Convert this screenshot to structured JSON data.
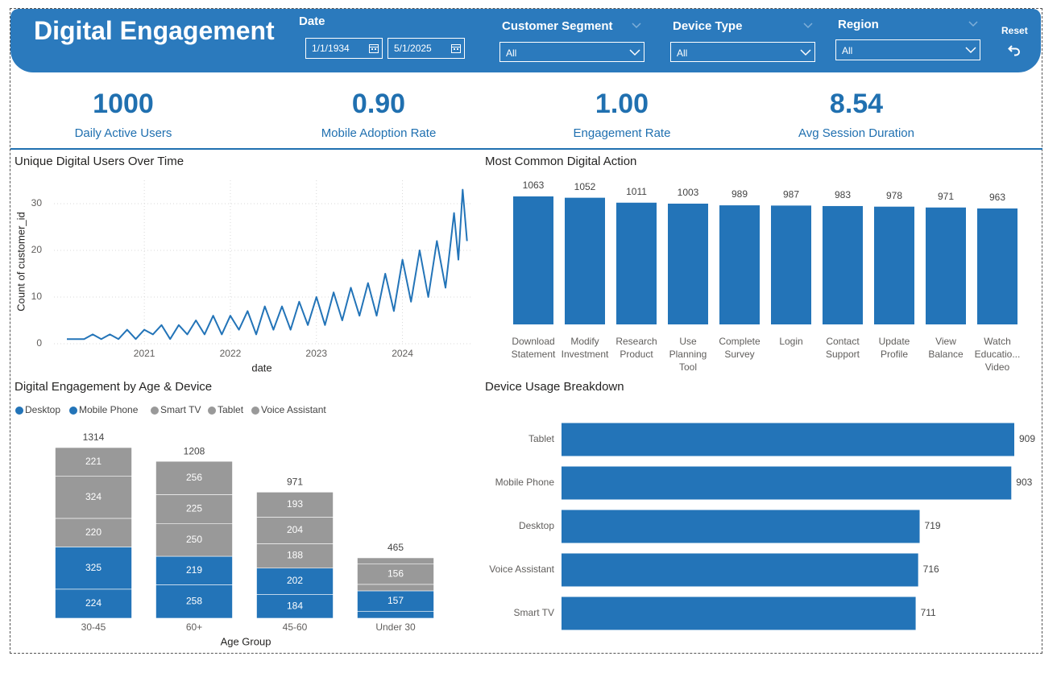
{
  "header": {
    "title": "Digital Engagement",
    "date_label": "Date",
    "date_from": "1/1/1934",
    "date_to": "5/1/2025",
    "filters": [
      {
        "label": "Customer Segment",
        "value": "All"
      },
      {
        "label": "Device Type",
        "value": "All"
      },
      {
        "label": "Region",
        "value": "All"
      }
    ],
    "reset": "Reset"
  },
  "kpis": [
    {
      "value": 1000,
      "name": "Daily Active Users"
    },
    {
      "value": 0.9,
      "value_label": "0.90",
      "name": "Mobile Adoption Rate"
    },
    {
      "value": 1,
      "value_label": "1.00",
      "name": "Engagement Rate"
    },
    {
      "value": 8.54,
      "name": "Avg Session Duration"
    }
  ],
  "chart_data": [
    {
      "type": "line",
      "title": "Unique Digital Users Over Time",
      "x_label": "date",
      "y_label": "Count of customer_id",
      "x": [
        2020.1,
        2020.2,
        2020.3,
        2020.4,
        2020.5,
        2020.6,
        2020.7,
        2020.8,
        2020.9,
        2021.0,
        2021.1,
        2021.2,
        2021.3,
        2021.4,
        2021.5,
        2021.6,
        2021.7,
        2021.8,
        2021.9,
        2022.0,
        2022.1,
        2022.2,
        2022.3,
        2022.4,
        2022.5,
        2022.6,
        2022.7,
        2022.8,
        2022.9,
        2023.0,
        2023.1,
        2023.2,
        2023.3,
        2023.4,
        2023.5,
        2023.6,
        2023.7,
        2023.8,
        2023.9,
        2024.0,
        2024.1,
        2024.2,
        2024.3,
        2024.4,
        2024.5,
        2024.6,
        2024.65,
        2024.7,
        2024.75
      ],
      "values": [
        1,
        1,
        1,
        2,
        1,
        2,
        1,
        3,
        1,
        3,
        2,
        4,
        1,
        4,
        2,
        5,
        2,
        6,
        2,
        6,
        3,
        7,
        2,
        8,
        3,
        8,
        3,
        9,
        4,
        10,
        4,
        11,
        5,
        12,
        6,
        13,
        6,
        15,
        7,
        18,
        9,
        20,
        10,
        22,
        12,
        28,
        18,
        33,
        22
      ],
      "color": "#2374b8",
      "xlim": [
        2019.95,
        2024.8
      ],
      "ylim": [
        0,
        35
      ],
      "xticks": [
        2021,
        2022,
        2023,
        2024
      ],
      "yticks": [
        0,
        10,
        20,
        30
      ],
      "grid": true
    },
    {
      "type": "bar",
      "title": "Most Common Digital Action",
      "categories": [
        "Download Statement",
        "Modify Investment",
        "Research Product",
        "Use Planning Tool",
        "Complete Survey",
        "Login",
        "Contact Support",
        "Update Profile",
        "View Balance",
        "Watch Educatio... Video"
      ],
      "values": [
        1063,
        1052,
        1011,
        1003,
        989,
        987,
        983,
        978,
        971,
        963
      ],
      "color": "#2374b8"
    },
    {
      "type": "stacked_bar",
      "title": "Digital Engagement by Age & Device",
      "x_label": "Age Group",
      "categories": [
        "30-45",
        "60+",
        "45-60",
        "Under 30"
      ],
      "series": [
        {
          "name": "Desktop",
          "color": "#2374b8",
          "values": [
            224,
            258,
            184,
            54
          ]
        },
        {
          "name": "Mobile Phone",
          "color": "#2374b8",
          "values": [
            325,
            219,
            202,
            157
          ]
        },
        {
          "name": "Smart TV",
          "color": "#999999",
          "values": [
            220,
            250,
            188,
            50
          ]
        },
        {
          "name": "Tablet",
          "color": "#999999",
          "values": [
            324,
            225,
            204,
            156
          ]
        },
        {
          "name": "Voice Assistant",
          "color": "#999999",
          "values": [
            221,
            256,
            193,
            48
          ]
        }
      ],
      "totals": [
        1314,
        1208,
        971,
        465
      ]
    },
    {
      "type": "bar",
      "horizontal": true,
      "title": "Device Usage Breakdown",
      "categories": [
        "Tablet",
        "Mobile Phone",
        "Desktop",
        "Voice Assistant",
        "Smart TV"
      ],
      "values": [
        909,
        903,
        719,
        716,
        711
      ],
      "color": "#2374b8"
    }
  ]
}
